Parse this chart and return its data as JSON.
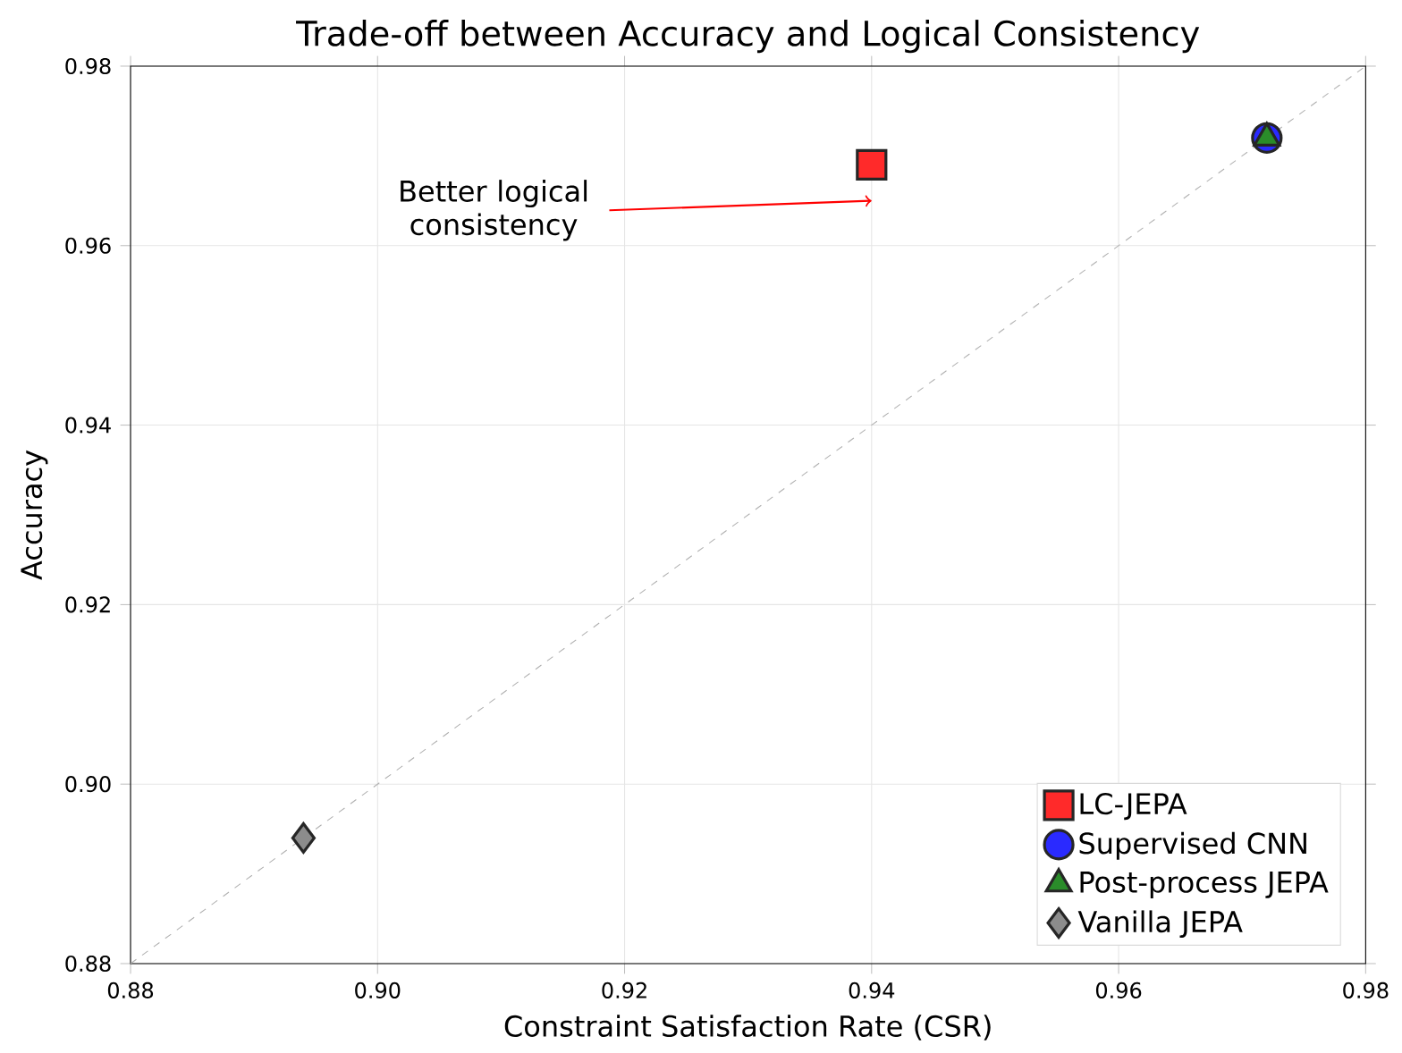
{
  "chart_data": {
    "type": "scatter",
    "title": "Trade-off between Accuracy and Logical Consistency",
    "xlabel": "Constraint Satisfaction Rate (CSR)",
    "ylabel": "Accuracy",
    "series": [
      {
        "name": "LC-JEPA",
        "color": "#ff2a2a",
        "marker": "square",
        "x": [
          0.94
        ],
        "values": [
          0.969
        ]
      },
      {
        "name": "Supervised CNN",
        "color": "#2a2aff",
        "marker": "circle",
        "x": [
          0.972
        ],
        "values": [
          0.972
        ]
      },
      {
        "name": "Post-process JEPA",
        "color": "#2a8c2a",
        "marker": "triangle",
        "x": [
          0.972
        ],
        "values": [
          0.972
        ]
      },
      {
        "name": "Vanilla JEPA",
        "color": "#8c8c8c",
        "marker": "diamond",
        "x": [
          0.894
        ],
        "values": [
          0.894
        ]
      },
      {
        "type": "line",
        "color": "#b0b0b0",
        "line_style": "dashed",
        "marker": "none",
        "x": [
          0.88,
          0.98
        ],
        "values": [
          0.88,
          0.98
        ]
      }
    ],
    "annotations": [
      {
        "text": "Better logical consistency",
        "x": 0.94,
        "y": 0.965
      }
    ],
    "xlim": [
      0.88,
      0.98
    ],
    "ylim": [
      0.88,
      0.98
    ],
    "xticks": [
      {
        "value": 0.88,
        "label": "0.88"
      },
      {
        "value": 0.9,
        "label": "0.90"
      },
      {
        "value": 0.92,
        "label": "0.92"
      },
      {
        "value": 0.94,
        "label": "0.94"
      },
      {
        "value": 0.96,
        "label": "0.96"
      },
      {
        "value": 0.98,
        "label": "0.98"
      }
    ],
    "yticks": [
      {
        "value": 0.88,
        "label": "0.88"
      },
      {
        "value": 0.9,
        "label": "0.90"
      },
      {
        "value": 0.92,
        "label": "0.92"
      },
      {
        "value": 0.94,
        "label": "0.94"
      },
      {
        "value": 0.96,
        "label": "0.96"
      },
      {
        "value": 0.98,
        "label": "0.98"
      }
    ],
    "grid": true,
    "legend": "bottom right"
  }
}
